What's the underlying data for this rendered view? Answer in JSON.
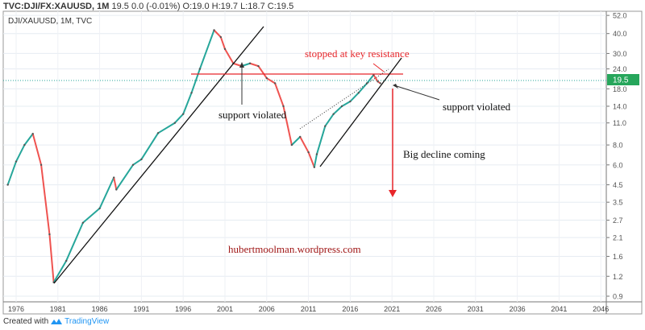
{
  "header": {
    "symbol": "TVC:DJI/FX:XAUUSD, 1M",
    "last": "19.5",
    "change": "0.0 (-0.01%)",
    "open": "O:19.0",
    "high": "H:19.7",
    "low": "L:18.7",
    "close": "C:19.5"
  },
  "legend_label": "DJI/XAUUSD, 1M, TVC",
  "footer": {
    "created_with": "Created with",
    "brand": "TradingView"
  },
  "colors": {
    "up": "#26a69a",
    "down": "#ef5350",
    "annotation_red": "#e8262a",
    "watermark": "#a01818",
    "price_label": "#26a65b"
  },
  "chart_data": {
    "type": "line",
    "title": "DJI/XAUUSD, 1M, TVC",
    "y_scale": "log",
    "ylim": [
      0.85,
      55
    ],
    "xlim": [
      1974.5,
      2048
    ],
    "yticks": [
      "52.0",
      "40.0",
      "30.0",
      "24.0",
      "18.0",
      "14.0",
      "11.0",
      "8.0",
      "6.0",
      "4.5",
      "3.5",
      "2.7",
      "2.1",
      "1.6",
      "1.2",
      "0.9"
    ],
    "xticks": [
      "1976",
      "1981",
      "1986",
      "1991",
      "1996",
      "2001",
      "2006",
      "2011",
      "2016",
      "2021",
      "2026",
      "2031",
      "2036",
      "2041",
      "2046"
    ],
    "current_price_label": "19.5",
    "series": [
      {
        "name": "DJI/XAUUSD",
        "x": [
          1975,
          1976,
          1977,
          1978,
          1979,
          1980,
          1980.5,
          1982,
          1984,
          1986,
          1987.7,
          1988,
          1990,
          1991,
          1993,
          1995,
          1996,
          1997,
          1998,
          1999.7,
          2000.5,
          2001,
          2002,
          2003,
          2004,
          2005,
          2006,
          2007,
          2008,
          2009,
          2010,
          2011,
          2011.7,
          2012,
          2013,
          2014,
          2015,
          2016,
          2017,
          2018,
          2018.8,
          2019.3,
          2019.6
        ],
        "y": [
          4.5,
          6.3,
          8.0,
          9.4,
          6.0,
          2.2,
          1.1,
          1.5,
          2.6,
          3.2,
          5.0,
          4.2,
          6.0,
          6.5,
          9.5,
          11.0,
          12.5,
          17.0,
          24.0,
          42.0,
          38.0,
          32.0,
          26.0,
          25.0,
          26.0,
          25.0,
          21.0,
          19.5,
          14.0,
          8.0,
          9.0,
          7.2,
          5.8,
          7.0,
          10.5,
          12.5,
          14.0,
          15.0,
          17.0,
          19.5,
          22.0,
          20.0,
          19.5
        ]
      }
    ],
    "annotations": [
      "stopped at key resistance",
      "support violated",
      "support violated",
      "Big decline coming",
      "hubertmoolman.wordpress.com"
    ]
  }
}
